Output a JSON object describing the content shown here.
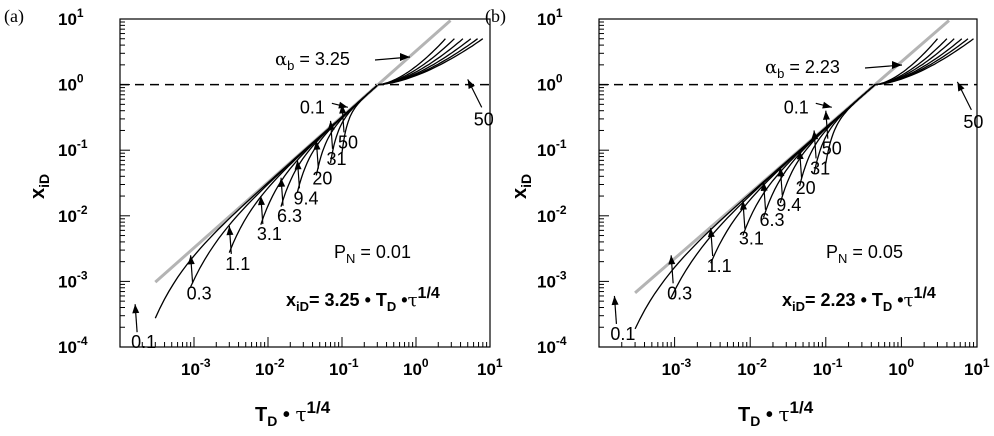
{
  "chart_data": [
    {
      "type": "line",
      "panel_label": "(a)",
      "xscale": "log",
      "yscale": "log",
      "xlim": [
        0.0001,
        10
      ],
      "ylim": [
        0.0001,
        10
      ],
      "x_ticks": [
        {
          "base": "10",
          "exp": "-3",
          "value": 0.001
        },
        {
          "base": "10",
          "exp": "-2",
          "value": 0.01
        },
        {
          "base": "10",
          "exp": "-1",
          "value": 0.1
        },
        {
          "base": "10",
          "exp": "0",
          "value": 1
        },
        {
          "base": "10",
          "exp": "1",
          "value": 10
        }
      ],
      "y_ticks": [
        {
          "base": "10",
          "exp": "-4",
          "value": 0.0001
        },
        {
          "base": "10",
          "exp": "-3",
          "value": 0.001
        },
        {
          "base": "10",
          "exp": "-2",
          "value": 0.01
        },
        {
          "base": "10",
          "exp": "-1",
          "value": 0.1
        },
        {
          "base": "10",
          "exp": "0",
          "value": 1
        },
        {
          "base": "10",
          "exp": "1",
          "value": 10
        }
      ],
      "xlabel": {
        "main": "T",
        "sub": "D",
        "mid": " • ",
        "sym": "τ",
        "sup": "1/4"
      },
      "ylabel": {
        "main": "x",
        "sub": "iD"
      },
      "reference_level": 1,
      "slope": 3.25,
      "alpha_label": {
        "sym": "α",
        "sub": "b",
        "rest": " = 3.25"
      },
      "pn_label": {
        "main": "P",
        "sub": "N",
        "rest": " = 0.01"
      },
      "formula": {
        "main": "x",
        "sub": "iD",
        "rest": "= 3.25 • T",
        "sub2": "D",
        "mid": " •",
        "sym": "τ",
        "sup": "1/4"
      },
      "curve_labels": [
        "0.1",
        "0.3",
        "1.1",
        "3.1",
        "6.3",
        "9.4",
        "20",
        "31",
        "50",
        "0.1",
        "50"
      ],
      "series": [
        {
          "name": "0.1",
          "x_start": 0.0003,
          "x_end": 0.08
        },
        {
          "name": "0.3",
          "x_start": 0.0009,
          "x_end": 0.3
        },
        {
          "name": "1.1",
          "x_start": 0.003,
          "x_end": 0.3
        },
        {
          "name": "3.1",
          "x_start": 0.008,
          "x_end": 0.3
        },
        {
          "name": "6.3",
          "x_start": 0.015,
          "x_end": 0.3
        },
        {
          "name": "9.4",
          "x_start": 0.025,
          "x_end": 0.3
        },
        {
          "name": "20",
          "x_start": 0.045,
          "x_end": 0.3
        },
        {
          "name": "31",
          "x_start": 0.07,
          "x_end": 0.3
        },
        {
          "name": "50",
          "x_start": 0.1,
          "x_end": 0.3
        }
      ],
      "branches": [
        {
          "x_end": 2.5,
          "y_end": 5.0
        },
        {
          "x_end": 3.3,
          "y_end": 5.0
        },
        {
          "x_end": 4.3,
          "y_end": 5.0
        },
        {
          "x_end": 5.5,
          "y_end": 5.0
        },
        {
          "x_end": 6.8,
          "y_end": 5.0
        },
        {
          "x_end": 8.0,
          "y_end": 5.0
        }
      ],
      "colors": {
        "reference": "#b4b4b4",
        "curves": "#000000"
      }
    },
    {
      "type": "line",
      "panel_label": "(b)",
      "xscale": "log",
      "yscale": "log",
      "xlim": [
        0.0001,
        10
      ],
      "ylim": [
        0.0001,
        10
      ],
      "x_ticks": [
        {
          "base": "10",
          "exp": "-3",
          "value": 0.001
        },
        {
          "base": "10",
          "exp": "-2",
          "value": 0.01
        },
        {
          "base": "10",
          "exp": "-1",
          "value": 0.1
        },
        {
          "base": "10",
          "exp": "0",
          "value": 1
        },
        {
          "base": "10",
          "exp": "1",
          "value": 10
        }
      ],
      "y_ticks": [
        {
          "base": "10",
          "exp": "-4",
          "value": 0.0001
        },
        {
          "base": "10",
          "exp": "-3",
          "value": 0.001
        },
        {
          "base": "10",
          "exp": "-2",
          "value": 0.01
        },
        {
          "base": "10",
          "exp": "-1",
          "value": 0.1
        },
        {
          "base": "10",
          "exp": "0",
          "value": 1
        },
        {
          "base": "10",
          "exp": "1",
          "value": 10
        }
      ],
      "xlabel": {
        "main": "T",
        "sub": "D",
        "mid": " • ",
        "sym": "τ",
        "sup": "1/4"
      },
      "ylabel": {
        "main": "x",
        "sub": "iD"
      },
      "reference_level": 1,
      "slope": 2.23,
      "alpha_label": {
        "sym": "α",
        "sub": "b",
        "rest": " = 2.23"
      },
      "pn_label": {
        "main": "P",
        "sub": "N",
        "rest": " = 0.05"
      },
      "formula": {
        "main": "x",
        "sub": "iD",
        "rest": "= 2.23 • T",
        "sub2": "D",
        "mid": " •",
        "sym": "τ",
        "sup": "1/4"
      },
      "curve_labels": [
        "0.1",
        "0.3",
        "1.1",
        "3.1",
        "6.3",
        "9.4",
        "20",
        "31",
        "50",
        "0.1",
        "50"
      ],
      "series": [
        {
          "name": "0.1",
          "x_start": 0.0003,
          "x_end": 0.12
        },
        {
          "name": "0.3",
          "x_start": 0.0009,
          "x_end": 0.45
        },
        {
          "name": "1.1",
          "x_start": 0.003,
          "x_end": 0.45
        },
        {
          "name": "3.1",
          "x_start": 0.008,
          "x_end": 0.45
        },
        {
          "name": "6.3",
          "x_start": 0.015,
          "x_end": 0.45
        },
        {
          "name": "9.4",
          "x_start": 0.025,
          "x_end": 0.45
        },
        {
          "name": "20",
          "x_start": 0.045,
          "x_end": 0.45
        },
        {
          "name": "31",
          "x_start": 0.07,
          "x_end": 0.45
        },
        {
          "name": "50",
          "x_start": 0.1,
          "x_end": 0.45
        }
      ],
      "branches": [
        {
          "x_end": 3.0,
          "y_end": 5.0
        },
        {
          "x_end": 4.0,
          "y_end": 5.0
        },
        {
          "x_end": 5.0,
          "y_end": 5.0
        },
        {
          "x_end": 6.3,
          "y_end": 5.0
        },
        {
          "x_end": 7.6,
          "y_end": 5.0
        },
        {
          "x_end": 9.0,
          "y_end": 5.0
        }
      ],
      "colors": {
        "reference": "#b4b4b4",
        "curves": "#000000"
      }
    }
  ]
}
